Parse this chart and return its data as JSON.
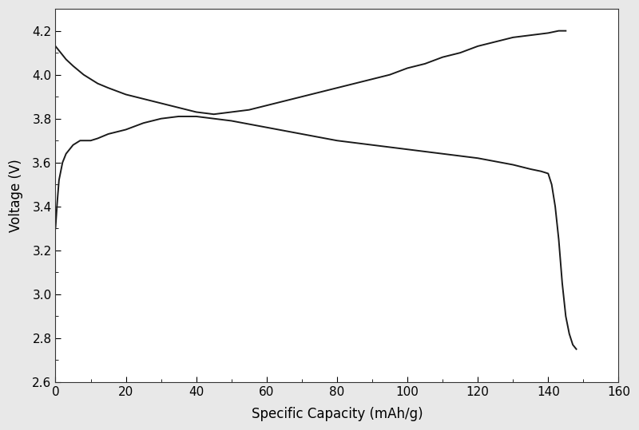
{
  "charge_x": [
    0,
    1,
    2,
    3,
    5,
    8,
    12,
    15,
    20,
    25,
    30,
    35,
    40,
    45,
    50,
    55,
    60,
    65,
    70,
    75,
    80,
    85,
    90,
    95,
    100,
    105,
    110,
    115,
    120,
    125,
    130,
    135,
    140,
    143,
    145
  ],
  "charge_y": [
    4.13,
    4.11,
    4.09,
    4.07,
    4.04,
    4.0,
    3.96,
    3.94,
    3.91,
    3.89,
    3.87,
    3.85,
    3.83,
    3.82,
    3.83,
    3.84,
    3.86,
    3.88,
    3.9,
    3.92,
    3.94,
    3.96,
    3.98,
    4.0,
    4.03,
    4.05,
    4.08,
    4.1,
    4.13,
    4.15,
    4.17,
    4.18,
    4.19,
    4.2,
    4.2
  ],
  "discharge_x": [
    0,
    0.5,
    1,
    2,
    3,
    4,
    5,
    6,
    7,
    8,
    9,
    10,
    12,
    15,
    20,
    25,
    30,
    35,
    40,
    50,
    60,
    70,
    80,
    90,
    100,
    110,
    120,
    130,
    135,
    138,
    140,
    141,
    142,
    143,
    144,
    145,
    146,
    147,
    148
  ],
  "discharge_y": [
    3.3,
    3.42,
    3.52,
    3.6,
    3.64,
    3.66,
    3.68,
    3.69,
    3.7,
    3.7,
    3.7,
    3.7,
    3.71,
    3.73,
    3.75,
    3.78,
    3.8,
    3.81,
    3.81,
    3.79,
    3.76,
    3.73,
    3.7,
    3.68,
    3.66,
    3.64,
    3.62,
    3.59,
    3.57,
    3.56,
    3.55,
    3.5,
    3.4,
    3.25,
    3.05,
    2.9,
    2.82,
    2.77,
    2.75
  ],
  "xlabel": "Specific Capacity (mAh/g)",
  "ylabel": "Voltage (V)",
  "xlim": [
    0,
    160
  ],
  "ylim": [
    2.6,
    4.3
  ],
  "xticks": [
    0,
    20,
    40,
    60,
    80,
    100,
    120,
    140,
    160
  ],
  "yticks": [
    2.6,
    2.8,
    3.0,
    3.2,
    3.4,
    3.6,
    3.8,
    4.0,
    4.2
  ],
  "line_color": "#1a1a1a",
  "line_width": 1.4,
  "figure_facecolor": "#e8e8e8",
  "axes_facecolor": "#ffffff",
  "xlabel_fontsize": 12,
  "ylabel_fontsize": 12,
  "tick_fontsize": 11
}
